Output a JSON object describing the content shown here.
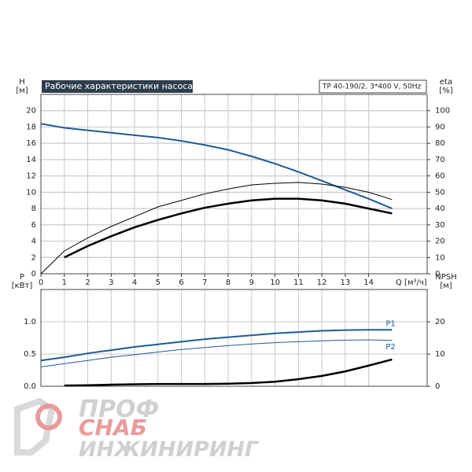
{
  "chart_data": [
    {
      "type": "line",
      "title": "Рабочие характеристики насоса",
      "subtitle": "TP 40-190/2, 3*400 V, 50Hz",
      "y_label": "H",
      "y_unit": "[м]",
      "y2_label": "eta",
      "y2_unit": "[%]",
      "x_label": "Q [м³/ч]",
      "x": [
        0,
        1,
        2,
        3,
        4,
        5,
        6,
        7,
        8,
        9,
        10,
        11,
        12,
        13,
        14,
        15
      ],
      "xlim": [
        0,
        16.5
      ],
      "xticks": [
        0,
        1,
        2,
        3,
        4,
        5,
        6,
        7,
        8,
        9,
        10,
        11,
        12,
        13,
        14
      ],
      "ylim": [
        0,
        22
      ],
      "yticks": [
        0,
        2,
        4,
        6,
        8,
        10,
        12,
        14,
        16,
        18,
        20
      ],
      "y2lim": [
        0,
        110
      ],
      "y2ticks": [
        0,
        10,
        20,
        30,
        40,
        50,
        60,
        70,
        80,
        90,
        100
      ],
      "grid": true,
      "series": [
        {
          "color": "#1f5a96",
          "width": 2,
          "values": [
            18.4,
            17.9,
            17.6,
            17.3,
            17.0,
            16.7,
            16.3,
            15.8,
            15.2,
            14.4,
            13.5,
            12.5,
            11.4,
            10.3,
            9.2,
            8.0
          ]
        },
        {
          "color": "#000000",
          "width": 1,
          "axis": "y2",
          "values": [
            0,
            14,
            22,
            29,
            35,
            41,
            45,
            49,
            52,
            54.5,
            55.5,
            56,
            55,
            53,
            50,
            45.5
          ]
        },
        {
          "color": "#000000",
          "width": 2.5,
          "axis": "y2",
          "values": [
            null,
            10,
            17,
            23,
            28.5,
            33,
            37,
            40.5,
            43,
            45,
            46,
            46,
            45,
            43,
            40,
            37
          ]
        }
      ]
    },
    {
      "type": "line",
      "y_label": "P",
      "y_unit": "[кВт]",
      "y2_label": "NPSH",
      "y2_unit": "[м]",
      "x": [
        0,
        1,
        2,
        3,
        4,
        5,
        6,
        7,
        8,
        9,
        10,
        11,
        12,
        13,
        14,
        15
      ],
      "xlim": [
        0,
        16.5
      ],
      "ylim": [
        0,
        1.5
      ],
      "yticks": [
        {
          "value": 0,
          "label": "0.0"
        },
        {
          "value": 0.5,
          "label": "0.5"
        },
        {
          "value": 1,
          "label": "1.0"
        }
      ],
      "y2lim": [
        0,
        30
      ],
      "y2ticks": [
        0,
        10,
        20
      ],
      "grid": true,
      "series": [
        {
          "name": "P1",
          "color": "#1f5a96",
          "width": 2,
          "values": [
            0.4,
            0.45,
            0.51,
            0.56,
            0.61,
            0.65,
            0.69,
            0.73,
            0.76,
            0.79,
            0.82,
            0.84,
            0.86,
            0.87,
            0.875,
            0.875
          ]
        },
        {
          "name": "P2",
          "color": "#1f5a96",
          "width": 1,
          "values": [
            0.3,
            0.35,
            0.4,
            0.45,
            0.49,
            0.53,
            0.57,
            0.6,
            0.63,
            0.655,
            0.675,
            0.69,
            0.705,
            0.715,
            0.72,
            0.71
          ]
        },
        {
          "color": "#000000",
          "width": 2.5,
          "axis": "y2",
          "values": [
            null,
            0.2,
            0.3,
            0.5,
            0.6,
            0.7,
            0.7,
            0.7,
            0.8,
            1.0,
            1.4,
            2.2,
            3.2,
            4.6,
            6.4,
            8.3
          ]
        }
      ]
    }
  ],
  "logo": {
    "line1": "ПРОФ",
    "line2": "СНАБ",
    "line3": "ИНЖИНИРИНГ"
  }
}
